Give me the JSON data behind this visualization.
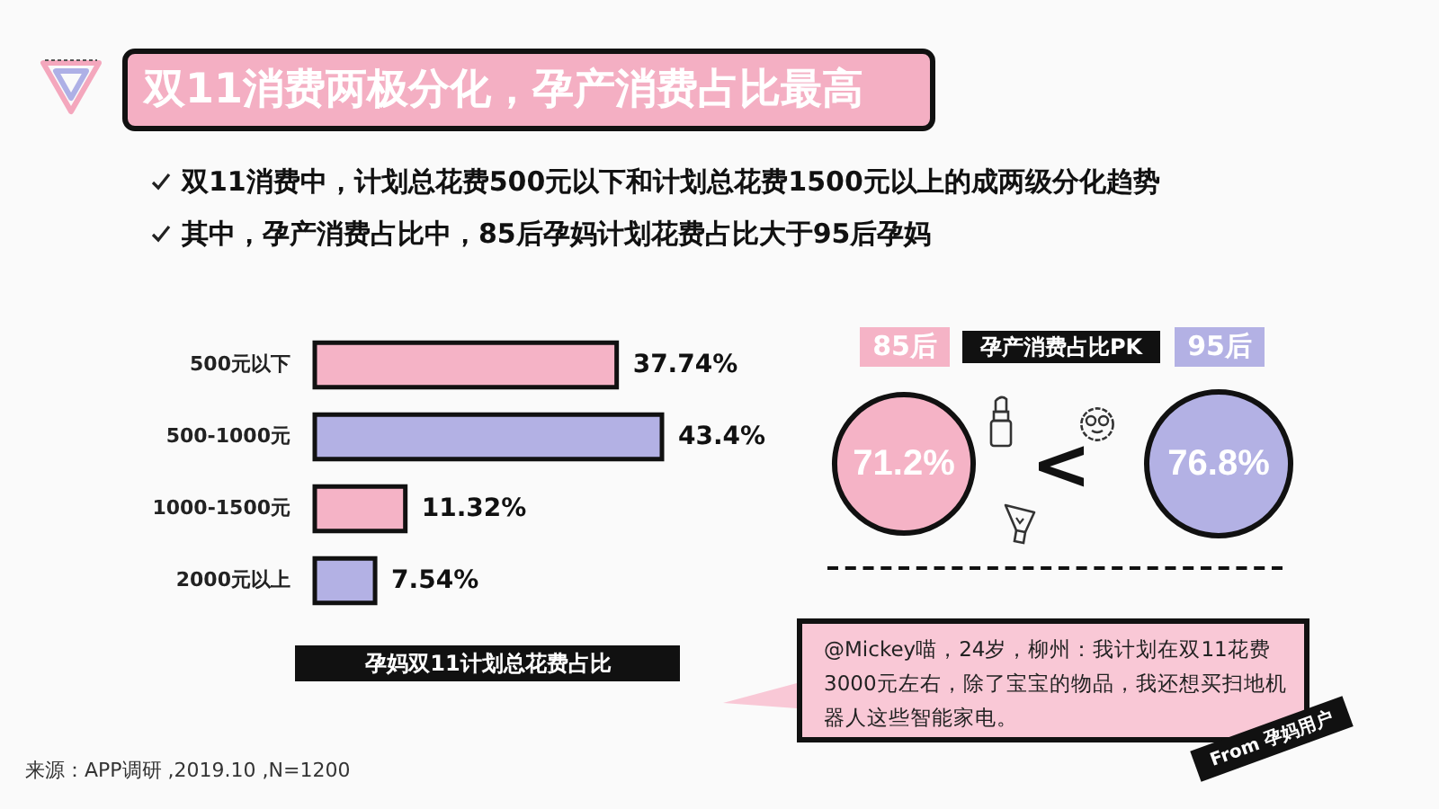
{
  "chart_data": [
    {
      "type": "bar",
      "orientation": "horizontal",
      "title": "孕妈双11计划总花费占比",
      "categories": [
        "500元以下",
        "500-1000元",
        "1000-1500元",
        "2000元以上"
      ],
      "values": [
        37.74,
        43.4,
        11.32,
        7.54
      ],
      "value_labels": [
        "37.74%",
        "43.4%",
        "11.32%",
        "7.54%"
      ],
      "colors": [
        "#f5b3c6",
        "#b3b1e4",
        "#f5b3c6",
        "#b3b1e4"
      ],
      "annotations": [
        "双11消费两极分化，孕产消费占比最高",
        "双11消费中，计划总花费500元以下和计划总花费1500元以上的成两级分化趋势",
        "其中，孕产消费占比中，85后孕妈计划花费占比大于95后孕妈",
        "来源：APP调研 ,2019.10 ,N=1200"
      ]
    },
    {
      "type": "other",
      "title": "孕产消费占比PK",
      "categories": [
        "85后",
        "95后"
      ],
      "values": [
        71.2,
        76.8
      ],
      "value_labels": [
        "71.2%",
        "76.8%"
      ],
      "colors": [
        "#f5b3c6",
        "#b3b1e4"
      ],
      "annotations": [
        "<",
        "@Mickey喵，24岁，柳州：我计划在双11花费3000元左右，除了宝宝的物品，我还想买扫地机器人这些智能家电。",
        "From 孕妈用户"
      ]
    }
  ]
}
